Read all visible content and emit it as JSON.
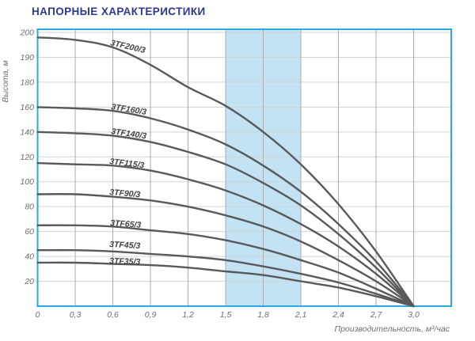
{
  "header": {
    "title": "НАПОРНЫЕ ХАРАКТЕРИСТИКИ",
    "title_color": "#2b3990"
  },
  "chart_data": {
    "type": "line",
    "title": "НАПОРНЫЕ ХАРАКТЕРИСТИКИ",
    "xlabel": "Производительность, м³/час",
    "ylabel": "Высота, м",
    "x": [
      0,
      0.3,
      0.6,
      0.9,
      1.2,
      1.5,
      1.8,
      2.1,
      2.4,
      2.7,
      3.0
    ],
    "x_tick_labels": [
      "0",
      "0,3",
      "0,6",
      "0,9",
      "1,2",
      "1,5",
      "1,8",
      "2,1",
      "2,4",
      "2,7",
      "3,0"
    ],
    "x_max_extent": 3.3,
    "y_tick_values": [
      200,
      190,
      180,
      160,
      140,
      120,
      100,
      80,
      60,
      40,
      20
    ],
    "y_axis_note": "non-linear axis: listed ticks are evenly spaced, 0 at baseline",
    "grid": true,
    "highlight_band": {
      "x_from": 1.5,
      "x_to": 2.1
    },
    "series": [
      {
        "name": "3TF200/3",
        "values": [
          198,
          197,
          194,
          187,
          176,
          161,
          140,
          114,
          82,
          44,
          0
        ]
      },
      {
        "name": "3TF160/3",
        "values": [
          160,
          159,
          157,
          151,
          142,
          130,
          113,
          92,
          66,
          36,
          0
        ]
      },
      {
        "name": "3TF140/3",
        "values": [
          140,
          139,
          137,
          132,
          124,
          114,
          99,
          81,
          58,
          31,
          0
        ]
      },
      {
        "name": "3TF115/3",
        "values": [
          115,
          114,
          113,
          109,
          102,
          93,
          81,
          66,
          48,
          26,
          0
        ]
      },
      {
        "name": "3TF90/3",
        "values": [
          90,
          90,
          88,
          85,
          80,
          73,
          64,
          52,
          37,
          20,
          0
        ]
      },
      {
        "name": "3TF65/3",
        "values": [
          65,
          65,
          64,
          61,
          58,
          53,
          46,
          37,
          27,
          14,
          0
        ]
      },
      {
        "name": "3TF45/3",
        "values": [
          45,
          45,
          44,
          42,
          40,
          37,
          32,
          26,
          19,
          10,
          0
        ]
      },
      {
        "name": "3TF35/3",
        "values": [
          35,
          35,
          34,
          33,
          31,
          28,
          25,
          20,
          15,
          8,
          0
        ]
      }
    ],
    "colors": {
      "frame": "#29abe2",
      "band_fill": "#c3e3f5",
      "h_grid": "#d0d2d3",
      "v_grid": "#a9abae",
      "curve": "#58595b",
      "curve_label": "#414042",
      "tick_text": "#6d6e71",
      "title_text": "#2b3990"
    }
  }
}
